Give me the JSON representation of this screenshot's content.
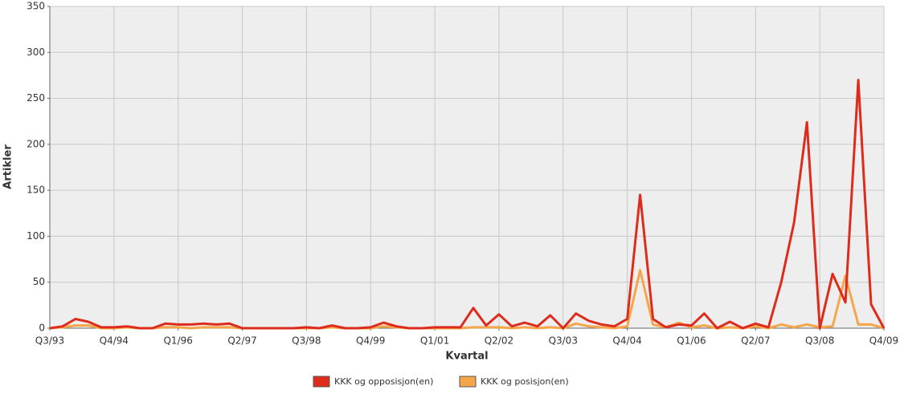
{
  "chart_data": {
    "type": "line",
    "x_label": "Kvartal",
    "y_label": "Artikler",
    "categories": [
      "Q3/93",
      null,
      null,
      null,
      null,
      "Q4/94",
      null,
      null,
      null,
      null,
      "Q1/96",
      null,
      null,
      null,
      null,
      "Q2/97",
      null,
      null,
      null,
      null,
      "Q3/98",
      null,
      null,
      null,
      null,
      "Q4/99",
      null,
      null,
      null,
      null,
      "Q1/01",
      null,
      null,
      null,
      null,
      "Q2/02",
      null,
      null,
      null,
      null,
      "Q3/03",
      null,
      null,
      null,
      null,
      "Q4/04",
      null,
      null,
      null,
      null,
      "Q1/06",
      null,
      null,
      null,
      null,
      "Q2/07",
      null,
      null,
      null,
      null,
      "Q3/08",
      null,
      null,
      null,
      null,
      "Q4/09"
    ],
    "series": [
      {
        "name": "KKK og opposisjon(en)",
        "color": "#dd2c1c",
        "values": [
          0,
          2,
          10,
          7,
          1,
          1,
          2,
          0,
          0,
          5,
          4,
          4,
          5,
          4,
          5,
          0,
          0,
          0,
          0,
          0,
          1,
          0,
          3,
          0,
          0,
          1,
          6,
          2,
          0,
          0,
          1,
          1,
          1,
          22,
          3,
          15,
          2,
          6,
          2,
          14,
          0,
          16,
          8,
          4,
          2,
          10,
          145,
          10,
          1,
          4,
          3,
          16,
          0,
          7,
          0,
          5,
          1,
          50,
          115,
          224,
          0,
          59,
          28,
          270,
          26,
          0
        ]
      },
      {
        "name": "KKK og posisjon(en)",
        "color": "#f5a54a",
        "values": [
          0,
          1,
          3,
          3,
          0,
          0,
          1,
          0,
          0,
          1,
          1,
          0,
          1,
          1,
          1,
          0,
          0,
          0,
          0,
          0,
          0,
          0,
          1,
          0,
          0,
          0,
          2,
          1,
          0,
          0,
          0,
          0,
          0,
          1,
          1,
          1,
          0,
          1,
          0,
          1,
          0,
          5,
          2,
          1,
          0,
          2,
          63,
          4,
          1,
          6,
          1,
          3,
          0,
          1,
          0,
          2,
          0,
          4,
          1,
          4,
          1,
          2,
          57,
          4,
          4,
          0
        ]
      }
    ],
    "ylim": [
      0,
      350
    ],
    "yticks": [
      0,
      50,
      100,
      150,
      200,
      250,
      300,
      350
    ],
    "grid": true
  }
}
